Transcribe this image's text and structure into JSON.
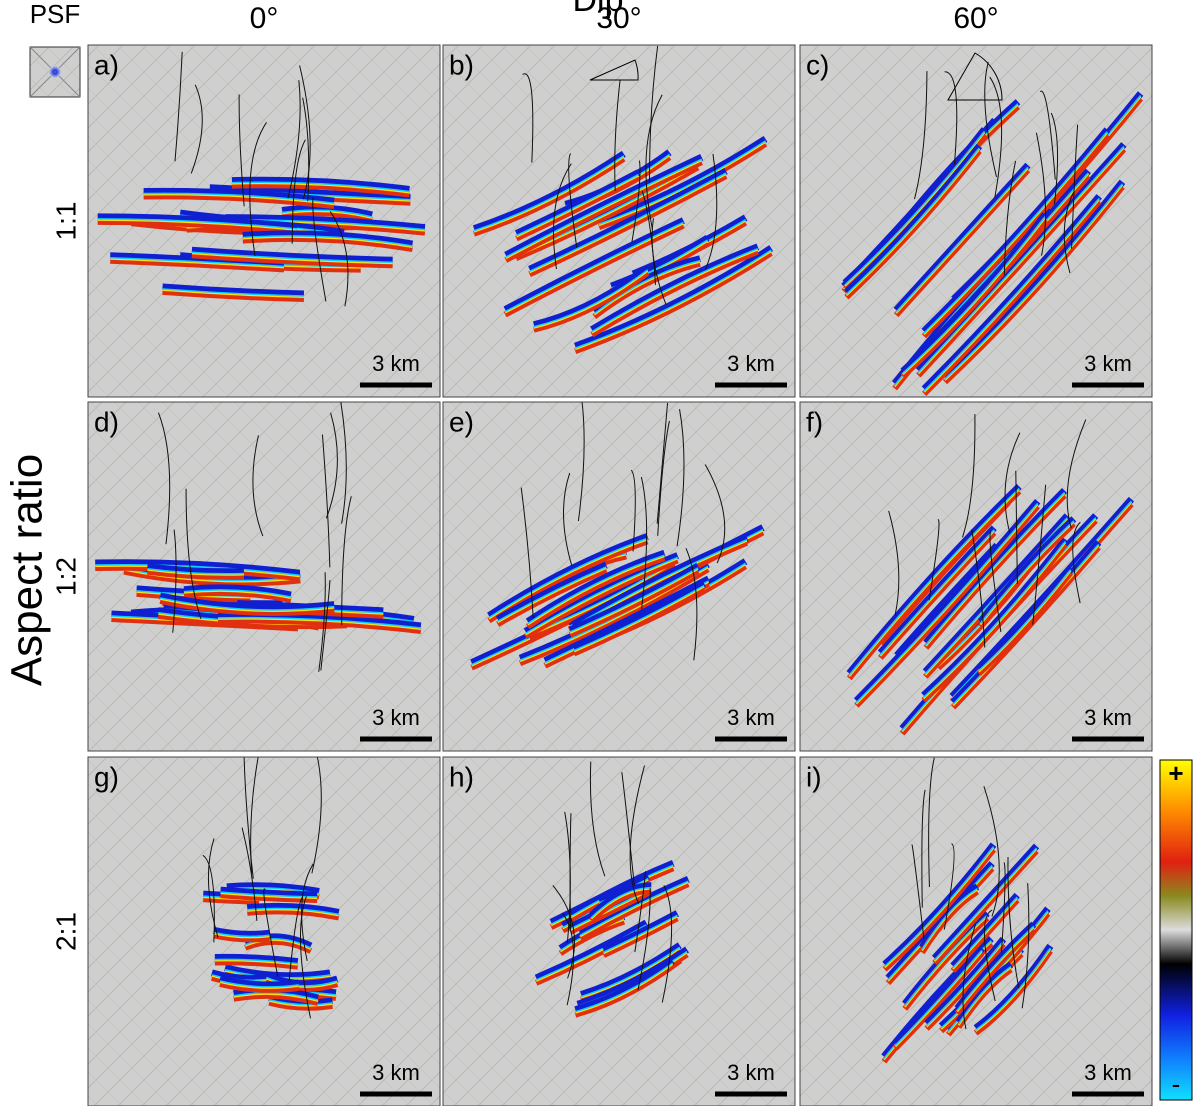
{
  "header": {
    "title": "Dip",
    "psf": "PSF",
    "columns": [
      "0°",
      "30°",
      "60°"
    ]
  },
  "rows": {
    "title": "Aspect ratio",
    "labels": [
      "1:1",
      "1:2",
      "2:1"
    ]
  },
  "panels": [
    {
      "label": "a)",
      "scale": "3 km"
    },
    {
      "label": "b)",
      "scale": "3 km"
    },
    {
      "label": "c)",
      "scale": "3 km"
    },
    {
      "label": "d)",
      "scale": "3 km"
    },
    {
      "label": "e)",
      "scale": "3 km"
    },
    {
      "label": "f)",
      "scale": "3 km"
    },
    {
      "label": "g)",
      "scale": "3 km"
    },
    {
      "label": "h)",
      "scale": "3 km"
    },
    {
      "label": "i)",
      "scale": "3 km"
    }
  ],
  "colorbar": {
    "max": "+",
    "min": "-"
  }
}
